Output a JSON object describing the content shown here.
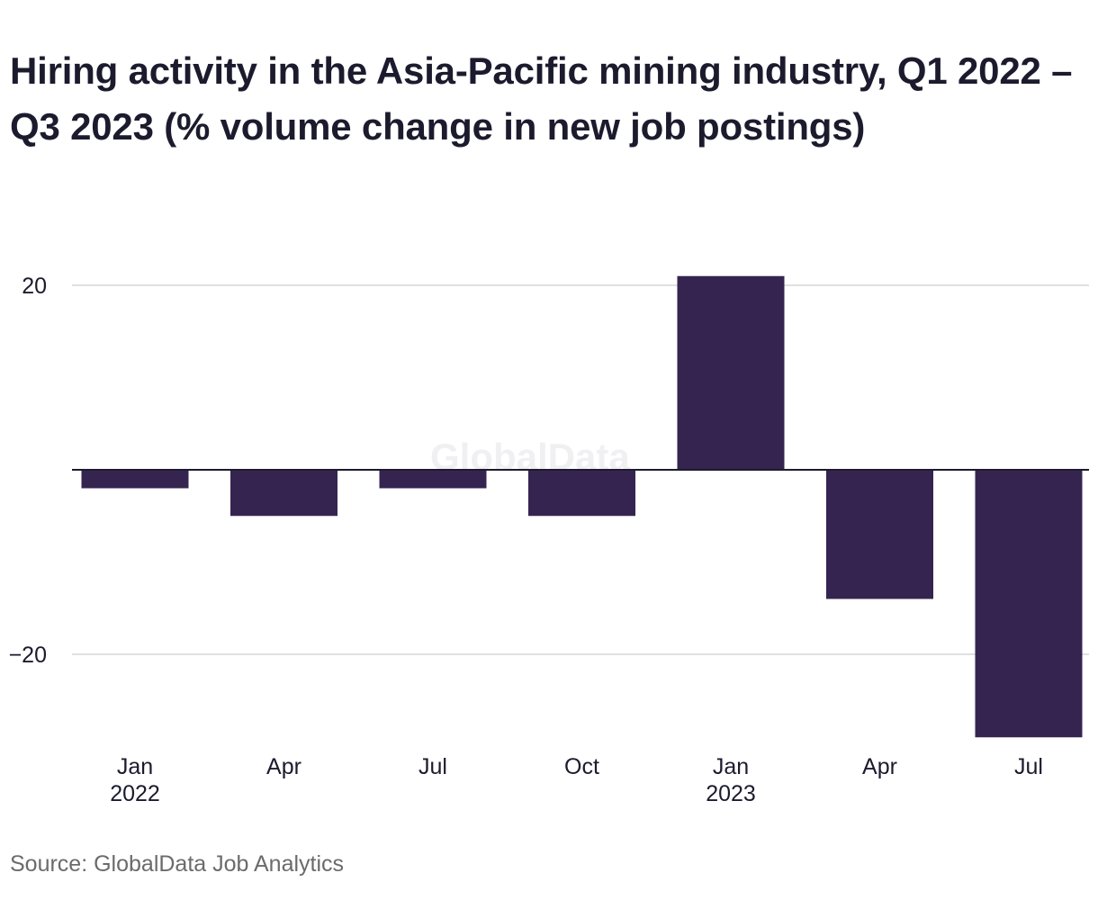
{
  "title": "Hiring activity in the Asia-Pacific mining industry, Q1 2022 – Q3 2023 (% volume change in new job postings)",
  "source": "Source: GlobalData Job Analytics",
  "watermark": "GlobalData",
  "colors": {
    "bar": "#352450",
    "grid": "#d6d6d6",
    "zero_line": "#1c1b2e",
    "text": "#1c1b2e",
    "source": "#6b6b6b"
  },
  "chart_data": {
    "type": "bar",
    "categories": [
      "Jan 2022",
      "Apr 2022",
      "Jul 2022",
      "Oct 2022",
      "Jan 2023",
      "Apr 2023",
      "Jul 2023"
    ],
    "x_tick_labels": [
      {
        "month": "Jan",
        "year": "2022"
      },
      {
        "month": "Apr",
        "year": ""
      },
      {
        "month": "Jul",
        "year": ""
      },
      {
        "month": "Oct",
        "year": ""
      },
      {
        "month": "Jan",
        "year": "2023"
      },
      {
        "month": "Apr",
        "year": ""
      },
      {
        "month": "Jul",
        "year": ""
      }
    ],
    "values": [
      -2,
      -5,
      -2,
      -5,
      21,
      -14,
      -29
    ],
    "ylim": [
      -30,
      21
    ],
    "y_ticks": [
      20,
      -20
    ],
    "y_tick_labels": [
      "20",
      "−20"
    ],
    "grid": true,
    "xlabel": "",
    "ylabel": "",
    "legend": "none"
  }
}
